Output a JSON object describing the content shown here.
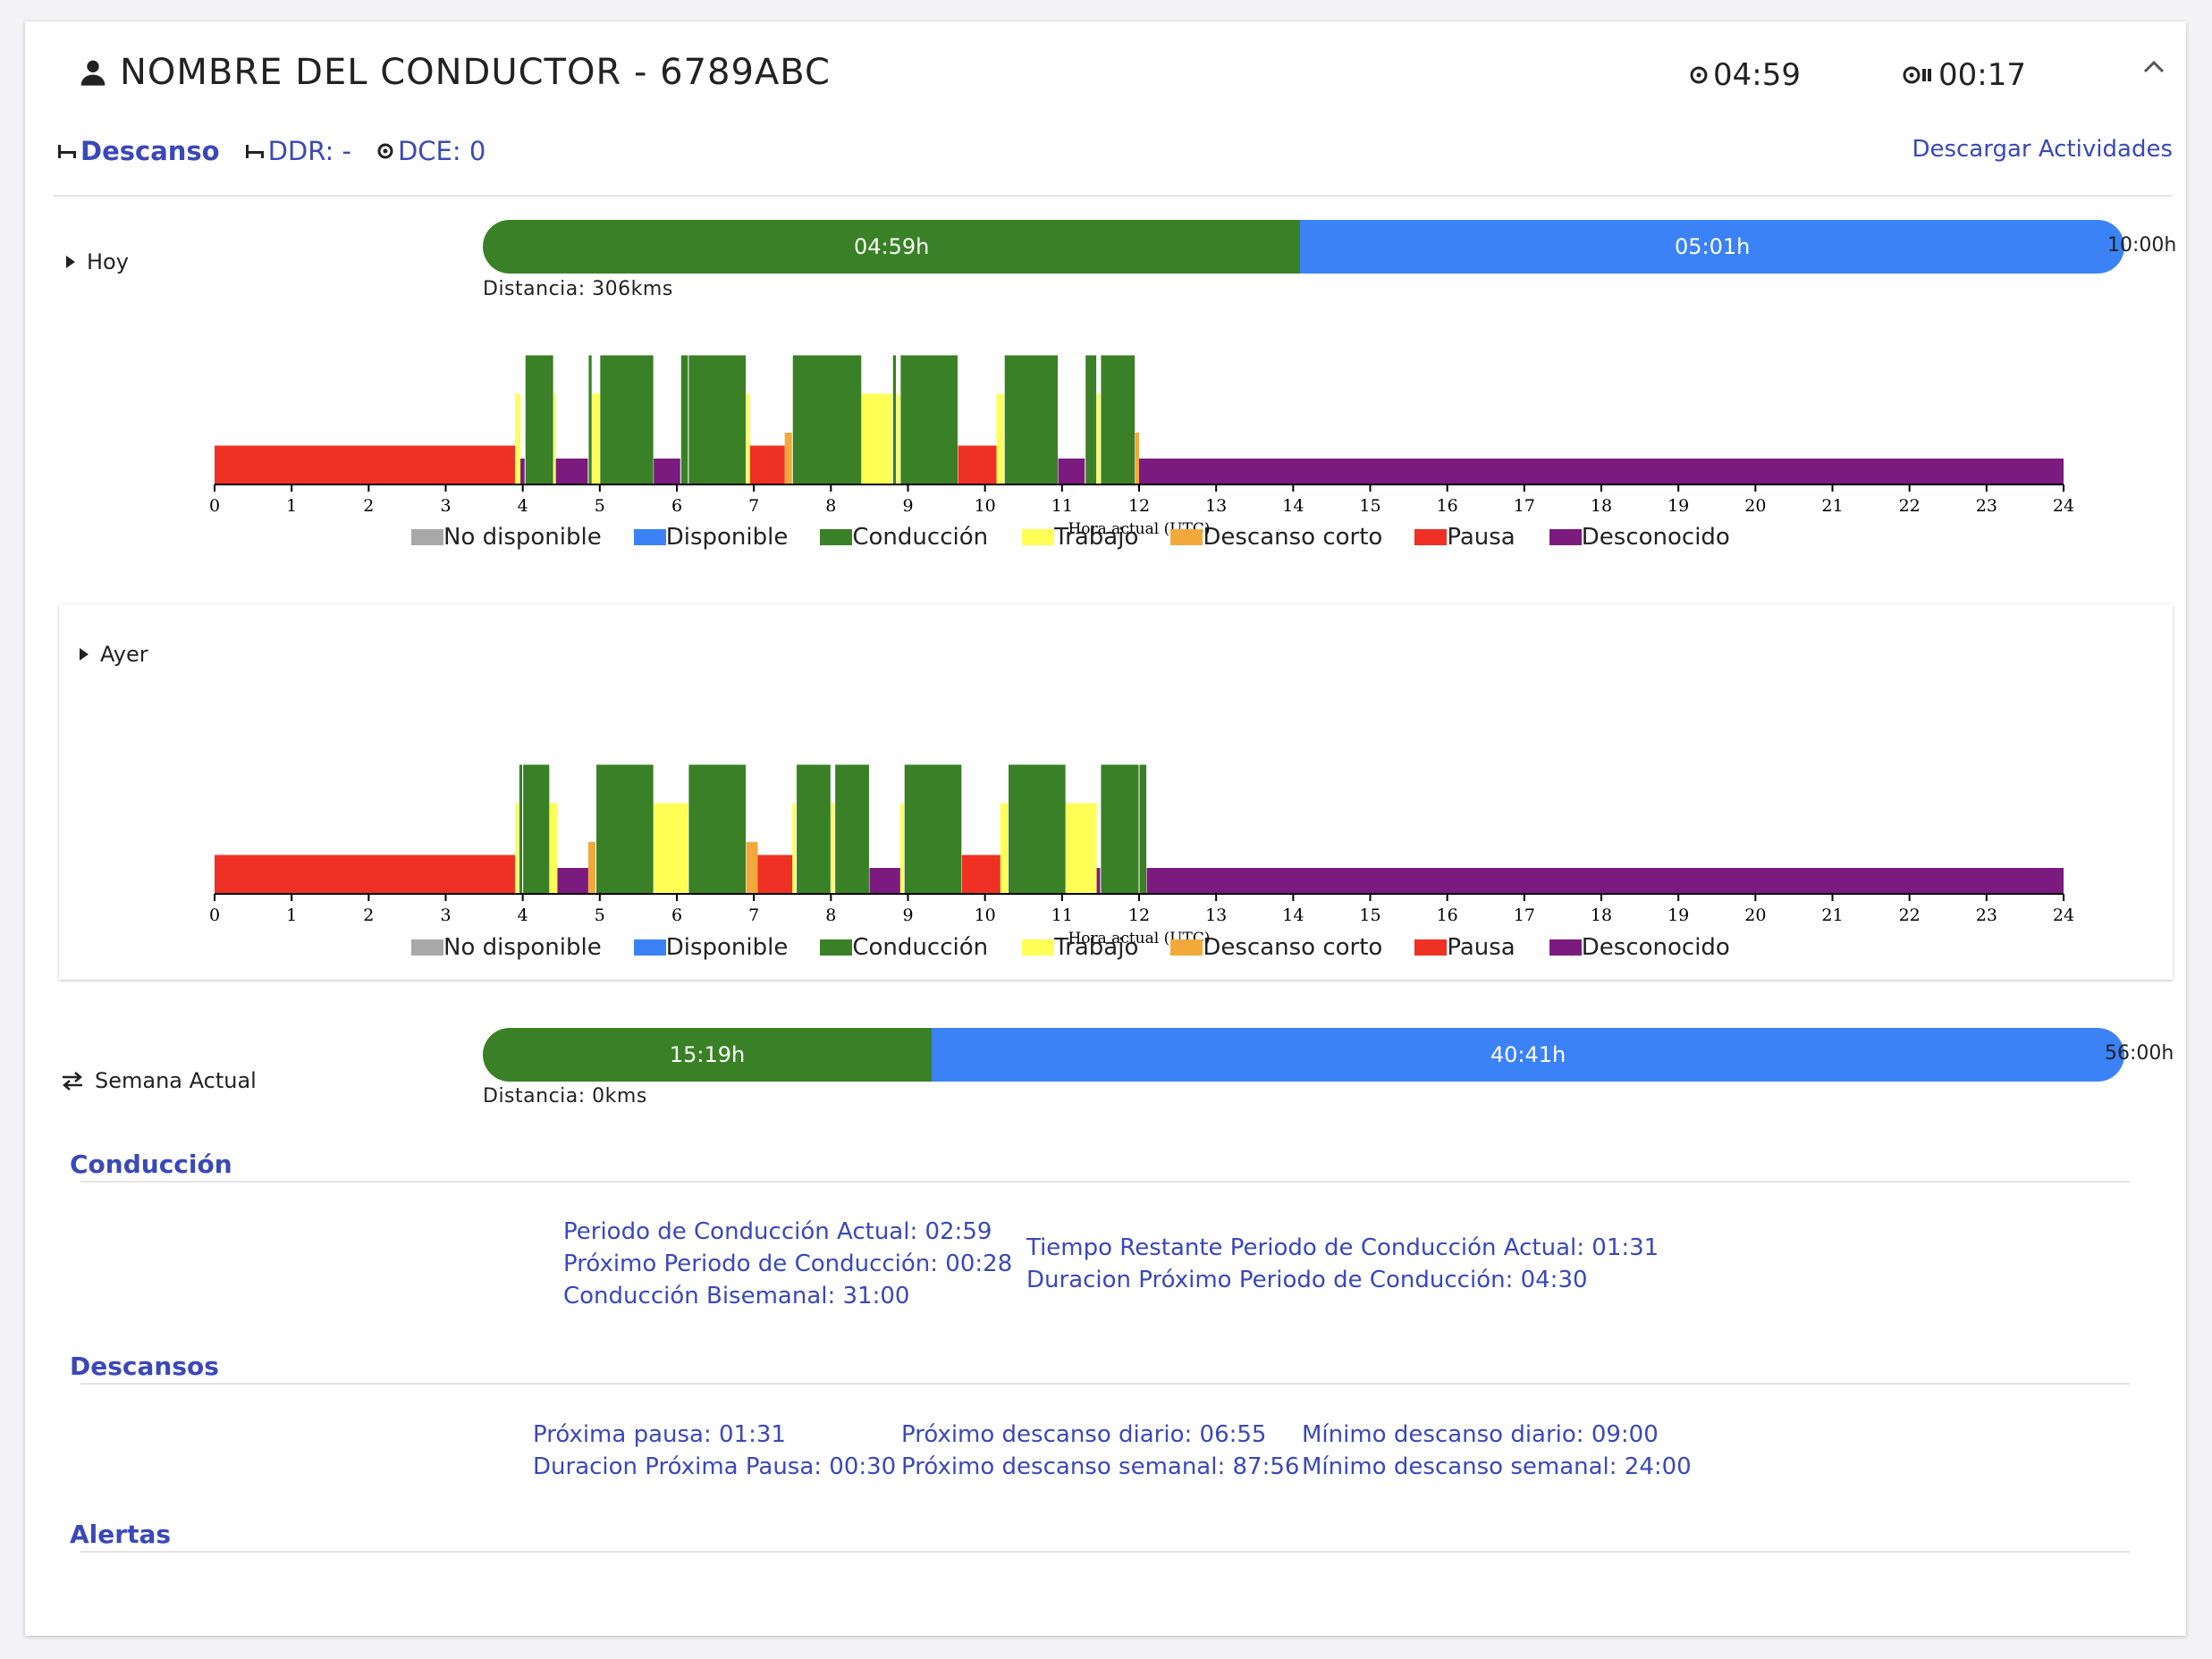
{
  "header": {
    "driver_title": "NOMBRE DEL CONDUCTOR - 6789ABC",
    "timer_driving": "04:59",
    "timer_pause": "00:17"
  },
  "status": {
    "state": "Descanso",
    "ddr": "DDR: -",
    "dce": "DCE: 0",
    "download_link": "Descargar Actividades"
  },
  "today": {
    "label": "Hoy",
    "driven": "04:59h",
    "remaining": "05:01h",
    "total": "10:00h",
    "driven_fraction": 0.498,
    "distance": "Distancia: 306kms"
  },
  "yesterday": {
    "label": "Ayer"
  },
  "week": {
    "label": "Semana Actual",
    "driven": "15:19h",
    "remaining": "40:41h",
    "total": "56:00h",
    "driven_fraction": 0.2735,
    "distance": "Distancia: 0kms"
  },
  "legend": [
    {
      "label": "No disponible",
      "color": "#a8a8a8"
    },
    {
      "label": "Disponible",
      "color": "#3b82f6"
    },
    {
      "label": "Conducción",
      "color": "#3a8026"
    },
    {
      "label": "Trabajo",
      "color": "#ffff55"
    },
    {
      "label": "Descanso corto",
      "color": "#f2a93b"
    },
    {
      "label": "Pausa",
      "color": "#ee3124"
    },
    {
      "label": "Desconocido",
      "color": "#7b1a7f"
    }
  ],
  "chart_data": [
    {
      "type": "bar",
      "name": "Hoy",
      "xlabel": "Hora actual (UTC)",
      "xlim": [
        0,
        24
      ],
      "ticks": [
        "0",
        "1",
        "2",
        "3",
        "4",
        "5",
        "6",
        "7",
        "8",
        "9",
        "10",
        "11",
        "12",
        "13",
        "14",
        "15",
        "16",
        "17",
        "18",
        "19",
        "20",
        "21",
        "22",
        "23",
        "24"
      ],
      "levels": {
        "pause": 0.3,
        "unknown": 0.2,
        "work": 0.7,
        "short": 0.4,
        "driving": 1.0
      },
      "segments": [
        {
          "s": 0,
          "e": 3.9,
          "a": "pause"
        },
        {
          "s": 3.9,
          "e": 3.97,
          "a": "work"
        },
        {
          "s": 3.97,
          "e": 4.03,
          "a": "unknown"
        },
        {
          "s": 4.03,
          "e": 4.4,
          "a": "driving"
        },
        {
          "s": 4.4,
          "e": 4.43,
          "a": "work"
        },
        {
          "s": 4.43,
          "e": 4.85,
          "a": "unknown"
        },
        {
          "s": 4.85,
          "e": 4.9,
          "a": "driving"
        },
        {
          "s": 4.9,
          "e": 5.0,
          "a": "work"
        },
        {
          "s": 5.0,
          "e": 5.7,
          "a": "driving"
        },
        {
          "s": 5.7,
          "e": 6.05,
          "a": "unknown"
        },
        {
          "s": 6.05,
          "e": 6.15,
          "a": "driving"
        },
        {
          "s": 6.15,
          "e": 6.9,
          "a": "driving"
        },
        {
          "s": 6.9,
          "e": 6.95,
          "a": "work"
        },
        {
          "s": 6.95,
          "e": 7.4,
          "a": "pause"
        },
        {
          "s": 7.4,
          "e": 7.5,
          "a": "short"
        },
        {
          "s": 7.5,
          "e": 8.4,
          "a": "driving"
        },
        {
          "s": 8.4,
          "e": 8.45,
          "a": "work"
        },
        {
          "s": 8.45,
          "e": 8.8,
          "a": "work"
        },
        {
          "s": 8.8,
          "e": 8.85,
          "a": "driving"
        },
        {
          "s": 8.85,
          "e": 8.9,
          "a": "work"
        },
        {
          "s": 8.9,
          "e": 9.65,
          "a": "driving"
        },
        {
          "s": 9.65,
          "e": 10.15,
          "a": "pause"
        },
        {
          "s": 10.15,
          "e": 10.25,
          "a": "work"
        },
        {
          "s": 10.25,
          "e": 10.95,
          "a": "driving"
        },
        {
          "s": 10.95,
          "e": 11.3,
          "a": "unknown"
        },
        {
          "s": 11.3,
          "e": 11.45,
          "a": "driving"
        },
        {
          "s": 11.45,
          "e": 11.5,
          "a": "work"
        },
        {
          "s": 11.5,
          "e": 11.95,
          "a": "driving"
        },
        {
          "s": 11.95,
          "e": 12.0,
          "a": "short"
        },
        {
          "s": 12.0,
          "e": 24,
          "a": "unknown"
        }
      ]
    },
    {
      "type": "bar",
      "name": "Ayer",
      "xlabel": "Hora actual (UTC)",
      "xlim": [
        0,
        24
      ],
      "ticks": [
        "0",
        "1",
        "2",
        "3",
        "4",
        "5",
        "6",
        "7",
        "8",
        "9",
        "10",
        "11",
        "12",
        "13",
        "14",
        "15",
        "16",
        "17",
        "18",
        "19",
        "20",
        "21",
        "22",
        "23",
        "24"
      ],
      "levels": {
        "pause": 0.3,
        "unknown": 0.2,
        "work": 0.7,
        "short": 0.4,
        "driving": 1.0
      },
      "segments": [
        {
          "s": 0,
          "e": 3.9,
          "a": "pause"
        },
        {
          "s": 3.9,
          "e": 3.95,
          "a": "work"
        },
        {
          "s": 3.95,
          "e": 4.0,
          "a": "driving"
        },
        {
          "s": 4.0,
          "e": 4.35,
          "a": "driving"
        },
        {
          "s": 4.35,
          "e": 4.45,
          "a": "work"
        },
        {
          "s": 4.45,
          "e": 4.85,
          "a": "unknown"
        },
        {
          "s": 4.85,
          "e": 4.95,
          "a": "short"
        },
        {
          "s": 4.95,
          "e": 5.7,
          "a": "driving"
        },
        {
          "s": 5.7,
          "e": 5.8,
          "a": "work"
        },
        {
          "s": 5.8,
          "e": 6.15,
          "a": "work"
        },
        {
          "s": 6.15,
          "e": 6.9,
          "a": "driving"
        },
        {
          "s": 6.9,
          "e": 7.05,
          "a": "short"
        },
        {
          "s": 7.05,
          "e": 7.5,
          "a": "pause"
        },
        {
          "s": 7.5,
          "e": 7.55,
          "a": "work"
        },
        {
          "s": 7.55,
          "e": 8.0,
          "a": "driving"
        },
        {
          "s": 8.0,
          "e": 8.05,
          "a": "work"
        },
        {
          "s": 8.05,
          "e": 8.5,
          "a": "driving"
        },
        {
          "s": 8.5,
          "e": 8.9,
          "a": "unknown"
        },
        {
          "s": 8.9,
          "e": 8.95,
          "a": "work"
        },
        {
          "s": 8.95,
          "e": 9.7,
          "a": "driving"
        },
        {
          "s": 9.7,
          "e": 10.2,
          "a": "pause"
        },
        {
          "s": 10.2,
          "e": 10.3,
          "a": "work"
        },
        {
          "s": 10.3,
          "e": 11.05,
          "a": "driving"
        },
        {
          "s": 11.05,
          "e": 11.45,
          "a": "work"
        },
        {
          "s": 11.45,
          "e": 11.5,
          "a": "unknown"
        },
        {
          "s": 11.5,
          "e": 12.0,
          "a": "driving"
        },
        {
          "s": 12.0,
          "e": 12.1,
          "a": "driving"
        },
        {
          "s": 12.1,
          "e": 24,
          "a": "unknown"
        }
      ]
    }
  ],
  "conduccion": {
    "title": "Conducción",
    "current_period": "Periodo de Conducción Actual: 02:59",
    "next_period": "Próximo Periodo de Conducción: 00:28",
    "biweekly": "Conducción Bisemanal: 31:00",
    "remaining_current": "Tiempo Restante Periodo de Conducción Actual: 01:31",
    "next_duration": "Duracion Próximo Periodo de Conducción: 04:30"
  },
  "descansos": {
    "title": "Descansos",
    "next_pause": "Próxima pausa: 01:31",
    "next_pause_duration": "Duracion Próxima Pausa: 00:30",
    "next_daily": "Próximo descanso diario: 06:55",
    "next_weekly": "Próximo descanso semanal: 87:56",
    "min_daily": "Mínimo descanso diario: 09:00",
    "min_weekly": "Mínimo descanso semanal: 24:00"
  },
  "alertas": {
    "title": "Alertas"
  }
}
